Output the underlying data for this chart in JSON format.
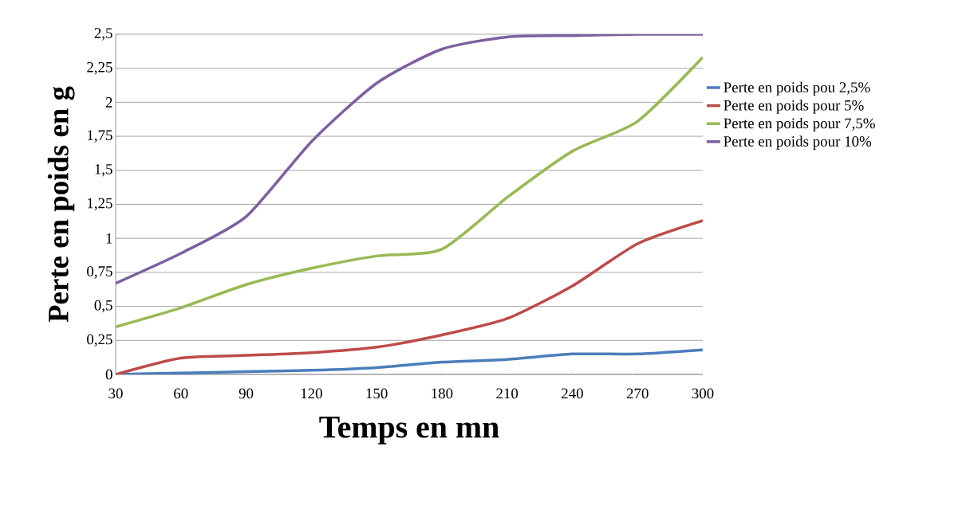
{
  "chart_data": {
    "type": "line",
    "xlabel": "Temps en mn",
    "ylabel": "Perte en poids en g",
    "x": [
      30,
      60,
      90,
      120,
      150,
      180,
      210,
      240,
      270,
      300
    ],
    "series": [
      {
        "name": "Perte en poids pou 2,5%",
        "color": "#4a7ebb",
        "values": [
          0,
          0.01,
          0.02,
          0.03,
          0.05,
          0.09,
          0.11,
          0.15,
          0.15,
          0.18
        ]
      },
      {
        "name": "Perte en poids pour 5%",
        "color": "#be4b48",
        "values": [
          0,
          0.12,
          0.14,
          0.16,
          0.2,
          0.29,
          0.41,
          0.65,
          0.96,
          1.13
        ]
      },
      {
        "name": "Perte en poids pour 7,5%",
        "color": "#98b954",
        "values": [
          0.35,
          0.49,
          0.66,
          0.78,
          0.87,
          0.92,
          1.3,
          1.64,
          1.86,
          2.33
        ]
      },
      {
        "name": "Perte en poids pour 10%",
        "color": "#7d60a0",
        "values": [
          0.67,
          0.89,
          1.16,
          1.71,
          2.14,
          2.39,
          2.48,
          2.49,
          2.5,
          2.5
        ]
      }
    ],
    "xlim": [
      30,
      300
    ],
    "xticks": [
      30,
      60,
      90,
      120,
      150,
      180,
      210,
      240,
      270,
      300
    ],
    "ylim": [
      0,
      2.5
    ],
    "yticks": [
      0,
      {
        "value": 0.25,
        "label": "0,25"
      },
      {
        "value": 0.5,
        "label": "0,5"
      },
      {
        "value": 0.75,
        "label": "0,75"
      },
      1,
      {
        "value": 1.25,
        "label": "1,25"
      },
      {
        "value": 1.5,
        "label": "1,5"
      },
      {
        "value": 1.75,
        "label": "1,75"
      },
      2,
      {
        "value": 2.25,
        "label": "2,25"
      },
      {
        "value": 2.5,
        "label": "2,5"
      }
    ],
    "grid": "y",
    "legend": "right",
    "marker": "none",
    "line_style": "solid"
  }
}
